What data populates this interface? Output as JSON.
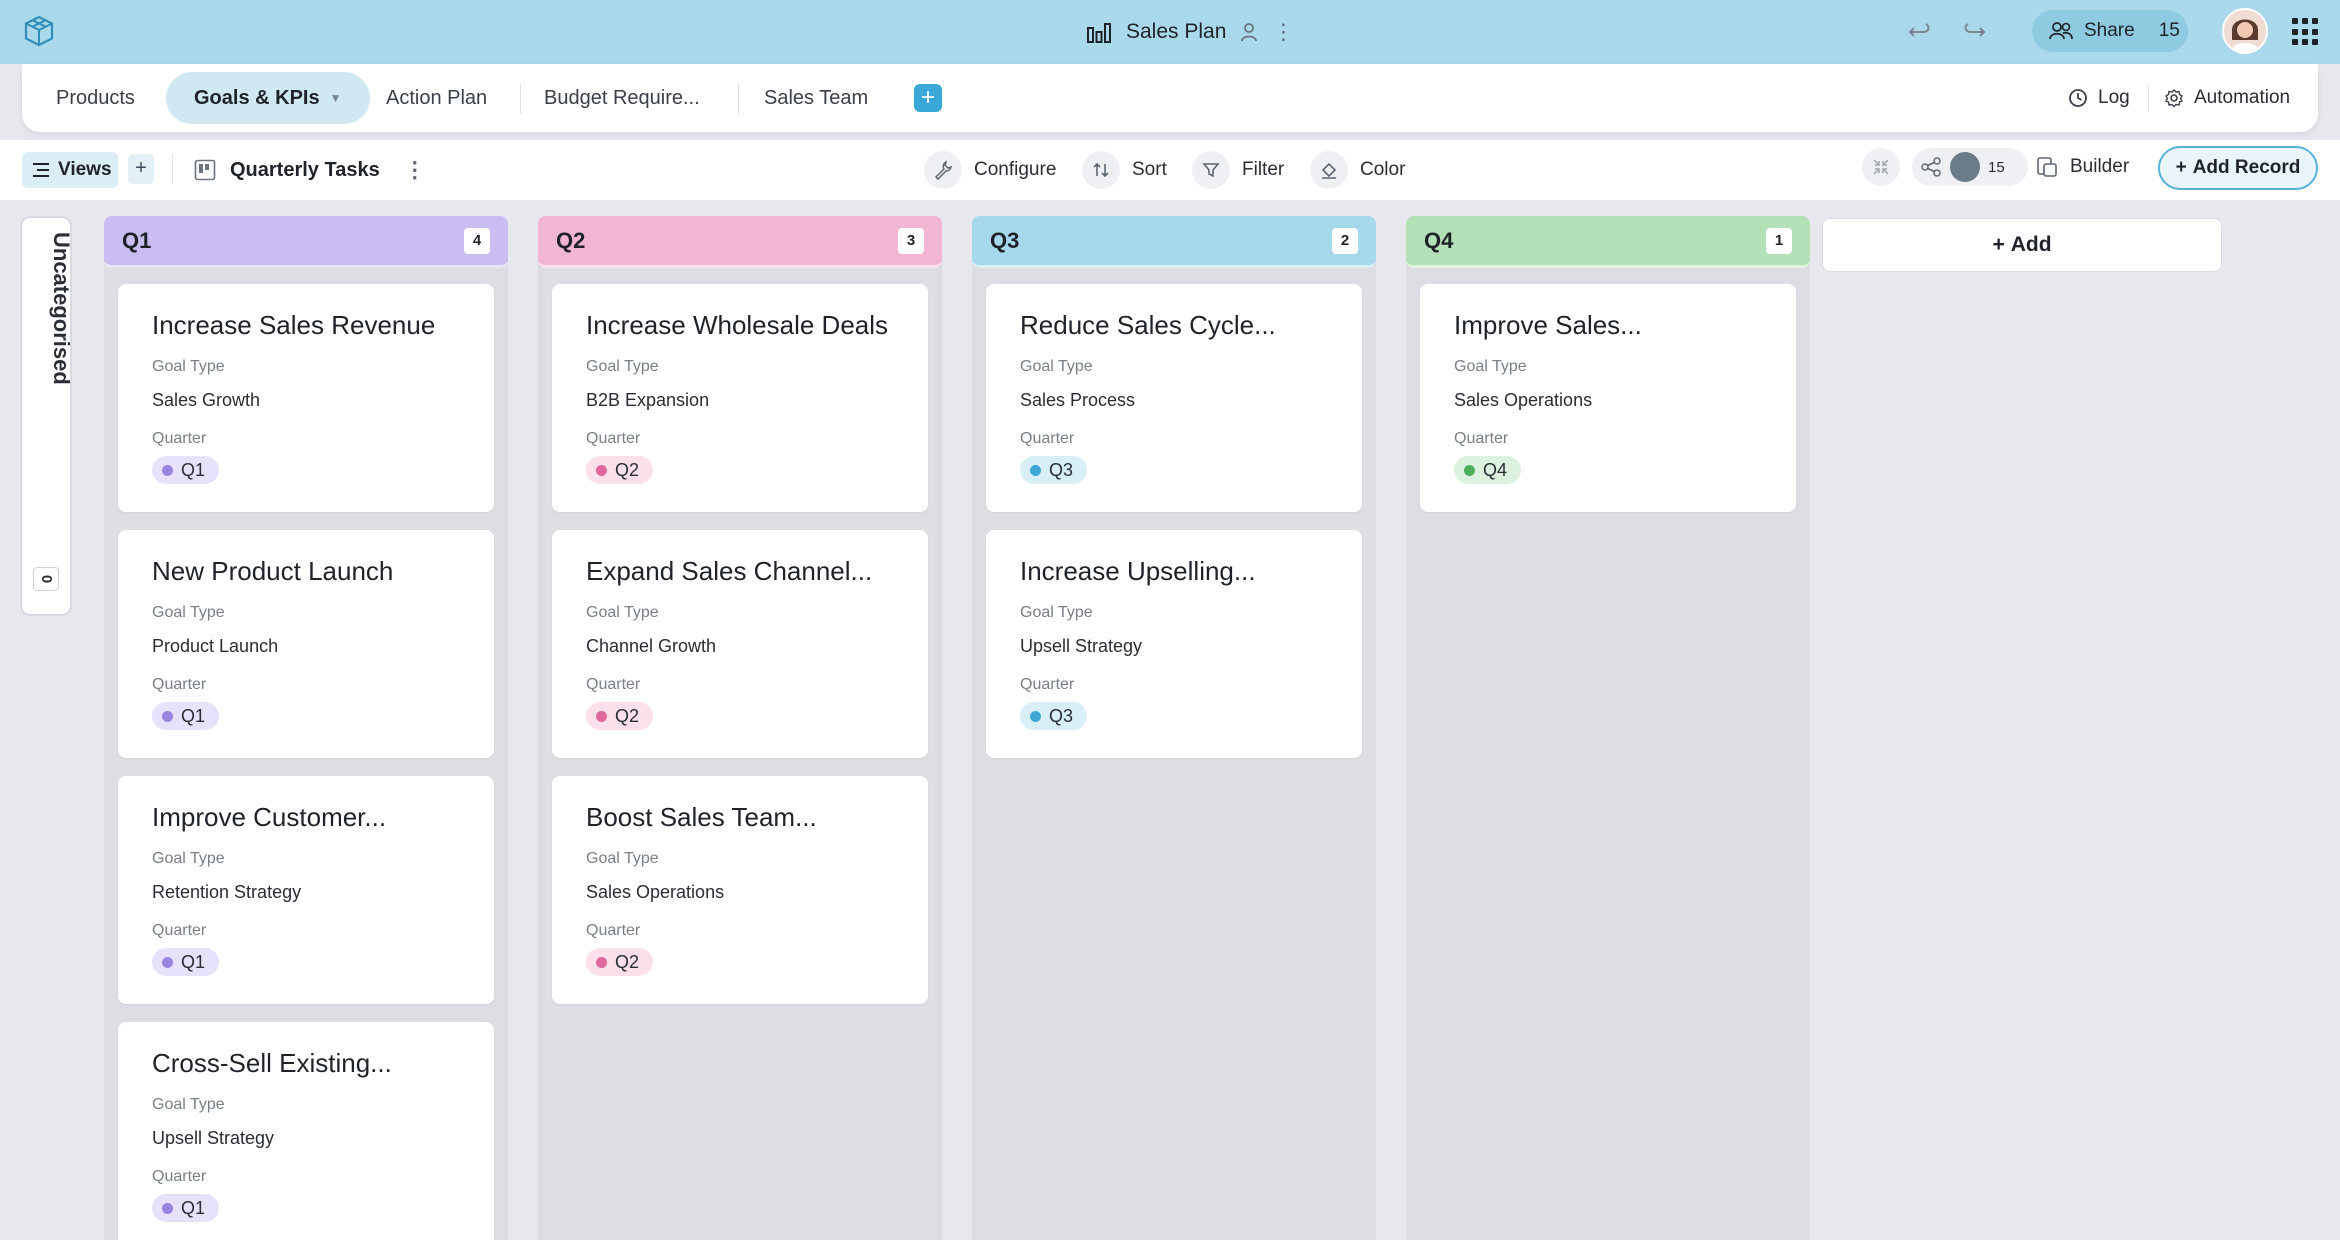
{
  "header": {
    "title": "Sales Plan",
    "share_label": "Share",
    "share_count": "15"
  },
  "tabs": [
    {
      "label": "Products"
    },
    {
      "label": "Goals & KPIs"
    },
    {
      "label": "Action Plan"
    },
    {
      "label": "Budget Require..."
    },
    {
      "label": "Sales Team"
    }
  ],
  "tabbar_right": {
    "log_label": "Log",
    "automation_label": "Automation"
  },
  "toolbar": {
    "views_label": "Views",
    "view_name": "Quarterly Tasks",
    "configure_label": "Configure",
    "sort_label": "Sort",
    "filter_label": "Filter",
    "color_label": "Color",
    "collaborator_count": "15",
    "builder_label": "Builder",
    "add_record_label": "Add Record"
  },
  "board": {
    "uncategorised_label": "Uncategorised",
    "uncategorised_count": "0",
    "add_column_label": "Add",
    "columns": [
      {
        "name": "Q1",
        "count": "4",
        "header_color": "#c9bdf1",
        "tag_bg": "#e7e1fb",
        "dot_color": "#9a86e0",
        "cards": [
          {
            "title": "Increase Sales Revenue",
            "goal_type_label": "Goal Type",
            "goal_type": "Sales Growth",
            "quarter_label": "Quarter",
            "quarter": "Q1"
          },
          {
            "title": "New Product Launch",
            "goal_type_label": "Goal Type",
            "goal_type": "Product Launch",
            "quarter_label": "Quarter",
            "quarter": "Q1"
          },
          {
            "title": "Improve Customer...",
            "goal_type_label": "Goal Type",
            "goal_type": "Retention Strategy",
            "quarter_label": "Quarter",
            "quarter": "Q1"
          },
          {
            "title": "Cross-Sell Existing...",
            "goal_type_label": "Goal Type",
            "goal_type": "Upsell Strategy",
            "quarter_label": "Quarter",
            "quarter": "Q1"
          }
        ]
      },
      {
        "name": "Q2",
        "count": "3",
        "header_color": "#f2b6d2",
        "tag_bg": "#fbe0ec",
        "dot_color": "#e0689d",
        "cards": [
          {
            "title": "Increase Wholesale Deals",
            "goal_type_label": "Goal Type",
            "goal_type": "B2B Expansion",
            "quarter_label": "Quarter",
            "quarter": "Q2"
          },
          {
            "title": "Expand Sales Channel...",
            "goal_type_label": "Goal Type",
            "goal_type": "Channel Growth",
            "quarter_label": "Quarter",
            "quarter": "Q2"
          },
          {
            "title": "Boost Sales Team...",
            "goal_type_label": "Goal Type",
            "goal_type": "Sales Operations",
            "quarter_label": "Quarter",
            "quarter": "Q2"
          }
        ]
      },
      {
        "name": "Q3",
        "count": "2",
        "header_color": "#a6d8ec",
        "tag_bg": "#d9eff8",
        "dot_color": "#3ea9d6",
        "cards": [
          {
            "title": "Reduce Sales Cycle...",
            "goal_type_label": "Goal Type",
            "goal_type": "Sales Process",
            "quarter_label": "Quarter",
            "quarter": "Q3"
          },
          {
            "title": "Increase Upselling...",
            "goal_type_label": "Goal Type",
            "goal_type": "Upsell Strategy",
            "quarter_label": "Quarter",
            "quarter": "Q3"
          }
        ]
      },
      {
        "name": "Q4",
        "count": "1",
        "header_color": "#b3e0b7",
        "tag_bg": "#dcf2de",
        "dot_color": "#4caf5a",
        "cards": [
          {
            "title": "Improve Sales...",
            "goal_type_label": "Goal Type",
            "goal_type": "Sales Operations",
            "quarter_label": "Quarter",
            "quarter": "Q4"
          }
        ]
      }
    ]
  }
}
